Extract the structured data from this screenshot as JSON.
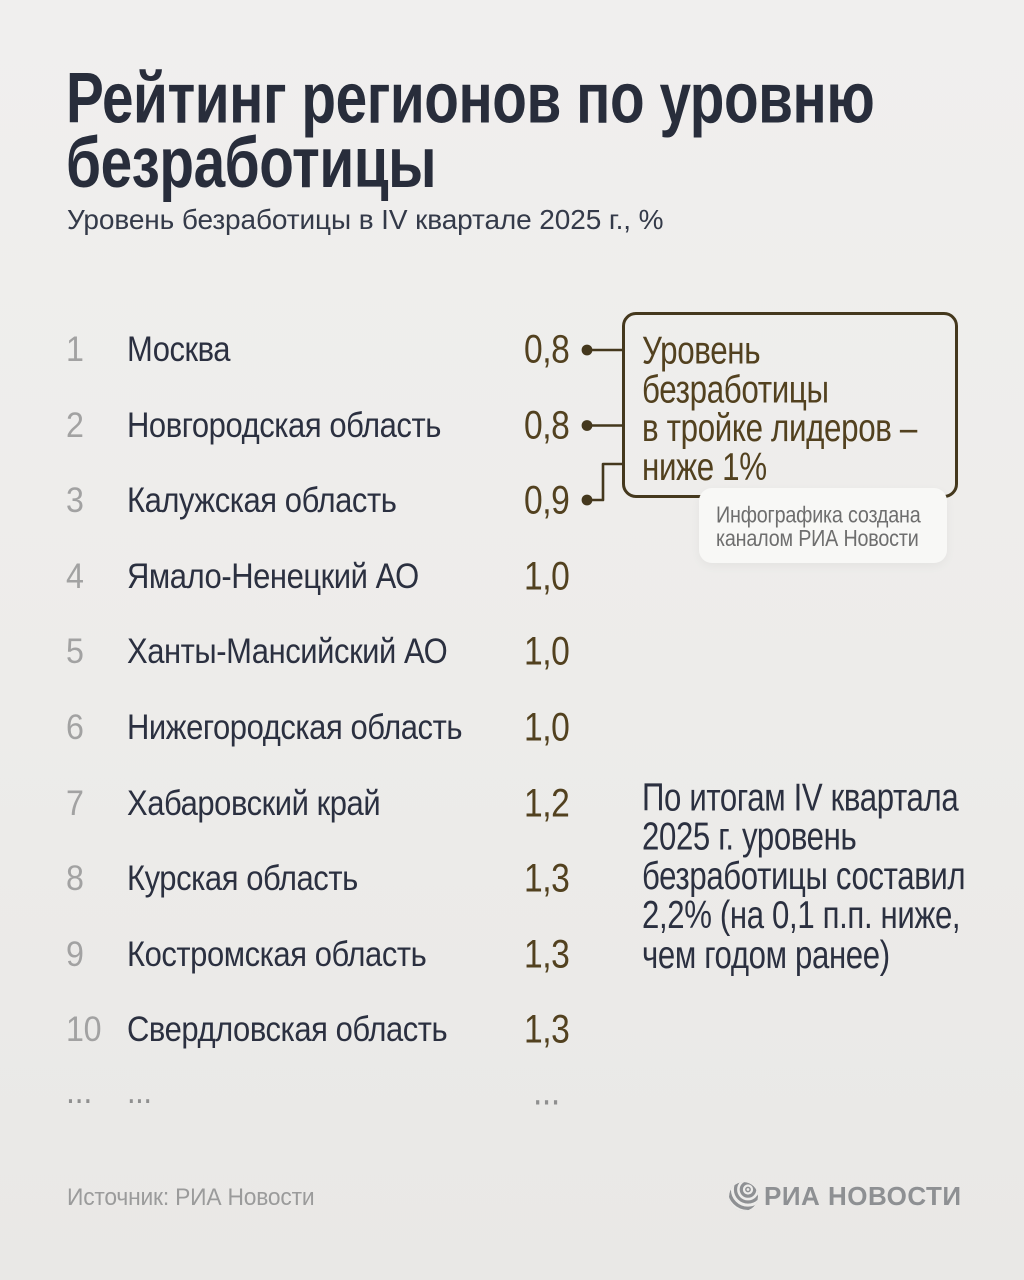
{
  "header": {
    "title": "Рейтинг регионов по уровню\nбезработицы",
    "subtitle": "Уровень безработицы в IV квартале 2025 г., %"
  },
  "chart_data": {
    "type": "table",
    "title": "Рейтинг регионов по уровню безработицы",
    "subtitle": "Уровень безработицы в IV квартале 2025 г., %",
    "unit": "%",
    "period": "IV квартал 2025 г.",
    "columns": [
      "rank",
      "region",
      "value"
    ],
    "rows": [
      {
        "rank": "1",
        "region": "Москва",
        "value": "0,8"
      },
      {
        "rank": "2",
        "region": "Новгородская область",
        "value": "0,8"
      },
      {
        "rank": "3",
        "region": "Калужская область",
        "value": "0,9"
      },
      {
        "rank": "4",
        "region": "Ямало-Ненецкий АО",
        "value": "1,0"
      },
      {
        "rank": "5",
        "region": "Ханты-Мансийский АО",
        "value": "1,0"
      },
      {
        "rank": "6",
        "region": "Нижегородская область",
        "value": "1,0"
      },
      {
        "rank": "7",
        "region": "Хабаровский край",
        "value": "1,2"
      },
      {
        "rank": "8",
        "region": "Курская область",
        "value": "1,3"
      },
      {
        "rank": "9",
        "region": "Костромская область",
        "value": "1,3"
      },
      {
        "rank": "10",
        "region": "Свердловская область",
        "value": "1,3"
      },
      {
        "rank": "...",
        "region": "...",
        "value": "...",
        "ellipsis": true
      }
    ],
    "legend_position": "none",
    "grid": false
  },
  "callout": {
    "text": "Уровень\nбезработицы\nв тройке лидеров –\nниже 1%",
    "linked_rows": [
      1,
      2,
      3
    ]
  },
  "credit_badge": {
    "text": "Инфографика создана\nканалом РИА Новости"
  },
  "note": {
    "text": "По итогам IV квартала\n2025 г. уровень\nбезработицы составил\n2,2% (на 0,1 п.п. ниже,\nчем годом ранее)"
  },
  "footer": {
    "source": "Источник: РИА Новости",
    "logo_text": "РИА НОВОСТИ"
  },
  "colors": {
    "background": "#edecea",
    "text_dark": "#2b3040",
    "rank_gray": "#a2a2a2",
    "accent_brown": "#52411f",
    "callout_border": "#44381d",
    "badge_background": "#fbfbfa",
    "badge_text": "#6e6e6e",
    "footer_gray": "#9b9b9b",
    "logo_gray": "#8e9093"
  }
}
